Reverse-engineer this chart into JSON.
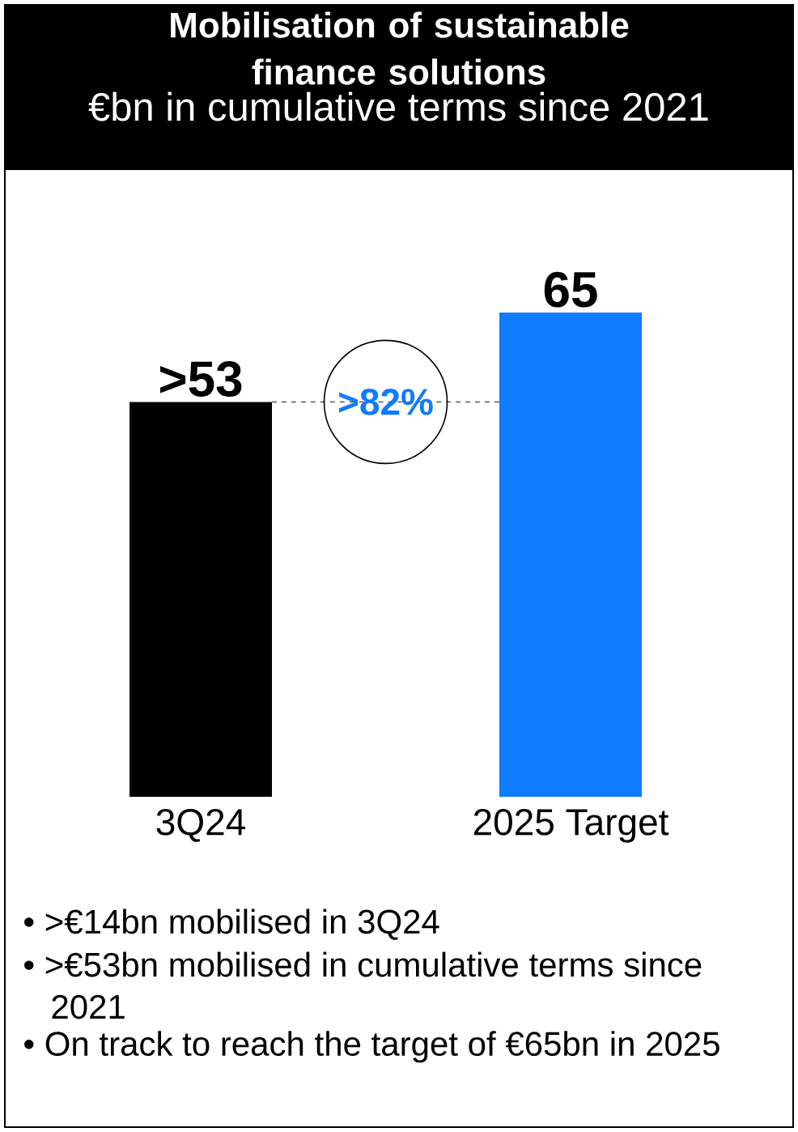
{
  "chart_data": {
    "type": "bar",
    "title": "Mobilisation of sustainable finance solutions",
    "subtitle": "€bn in cumulative terms since 2021",
    "categories": [
      "3Q24",
      "2025 Target"
    ],
    "values": [
      53,
      65
    ],
    "colors": [
      "#000000",
      "#0f7bff"
    ],
    "value_labels": [
      ">53",
      "65"
    ],
    "ref_lines": [
      {
        "axis": "y",
        "value": 53,
        "line_style": "dashed",
        "color": "#404040"
      }
    ],
    "annotations": [
      ">82%",
      "• >€14bn mobilised in 3Q24",
      "• >€53bn mobilised in cumulative terms since 2021",
      "• On track to reach the target of €65bn in 2025"
    ]
  }
}
